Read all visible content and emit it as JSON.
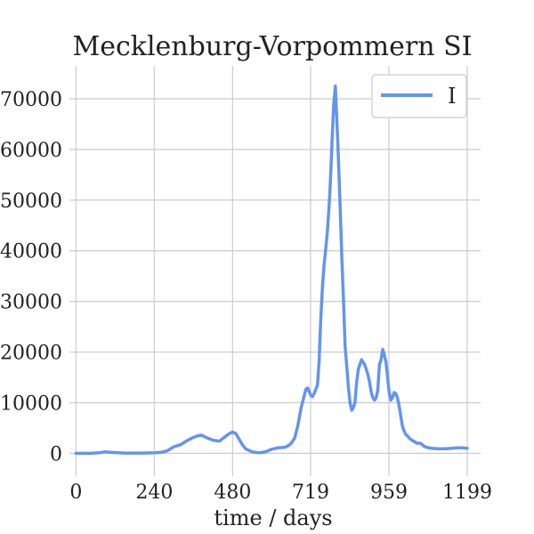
{
  "chart_data": {
    "type": "line",
    "title": "Mecklenburg-Vorpommern SI",
    "xlabel": "time / days",
    "ylabel": "",
    "xlim": [
      -20,
      1240
    ],
    "ylim": [
      -4500,
      76500
    ],
    "xticks": [
      0,
      240,
      480,
      719,
      959,
      1199
    ],
    "yticks": [
      0,
      10000,
      20000,
      30000,
      40000,
      50000,
      60000,
      70000
    ],
    "grid": true,
    "legend_position": "top-right",
    "series": [
      {
        "name": "I",
        "color": "#6495ED",
        "x": [
          0,
          40,
          70,
          90,
          110,
          150,
          200,
          240,
          260,
          280,
          300,
          320,
          340,
          355,
          370,
          385,
          400,
          420,
          440,
          455,
          470,
          480,
          490,
          500,
          510,
          520,
          540,
          560,
          580,
          600,
          620,
          640,
          650,
          660,
          670,
          680,
          690,
          700,
          705,
          710,
          715,
          719,
          725,
          730,
          740,
          745,
          750,
          755,
          760,
          765,
          770,
          775,
          780,
          785,
          790,
          795,
          798,
          802,
          806,
          810,
          815,
          820,
          825,
          830,
          835,
          840,
          845,
          850,
          855,
          860,
          865,
          870,
          875,
          880,
          885,
          890,
          895,
          900,
          905,
          910,
          915,
          920,
          925,
          930,
          935,
          940,
          945,
          950,
          955,
          960,
          965,
          970,
          975,
          980,
          985,
          990,
          995,
          1000,
          1005,
          1010,
          1015,
          1020,
          1025,
          1030,
          1035,
          1040,
          1045,
          1050,
          1055,
          1060,
          1065,
          1070,
          1075,
          1080,
          1085,
          1090,
          1100,
          1110,
          1120,
          1130,
          1140,
          1150,
          1160,
          1170,
          1180,
          1190,
          1199
        ],
        "y": [
          0,
          0,
          100,
          300,
          200,
          50,
          50,
          100,
          200,
          500,
          1300,
          1700,
          2500,
          3000,
          3400,
          3600,
          3100,
          2600,
          2400,
          3200,
          3900,
          4200,
          3900,
          2800,
          1700,
          900,
          300,
          100,
          300,
          800,
          1100,
          1200,
          1500,
          2000,
          3000,
          5500,
          9000,
          11500,
          12700,
          12900,
          12200,
          11500,
          11200,
          11800,
          13500,
          18000,
          26000,
          32500,
          37000,
          40000,
          43500,
          48000,
          54000,
          62000,
          69000,
          72500,
          68000,
          62000,
          55000,
          48000,
          38000,
          30000,
          21000,
          17000,
          13000,
          10000,
          8500,
          9000,
          10000,
          14000,
          16500,
          17500,
          18500,
          18000,
          17500,
          16500,
          15500,
          14000,
          12000,
          11000,
          10500,
          11000,
          12500,
          17500,
          18500,
          20500,
          19500,
          18000,
          15000,
          12000,
          10500,
          11000,
          12000,
          11800,
          11000,
          9500,
          7500,
          5500,
          4500,
          3800,
          3500,
          3100,
          2800,
          2600,
          2400,
          2200,
          2000,
          2000,
          2000,
          1800,
          1500,
          1300,
          1200,
          1100,
          1050,
          1000,
          950,
          900,
          900,
          900,
          950,
          1000,
          1050,
          1100,
          1100,
          1050,
          1000
        ]
      }
    ]
  }
}
